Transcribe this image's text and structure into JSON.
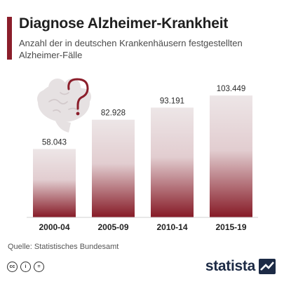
{
  "header": {
    "title": "Diagnose Alzheimer-Krankheit",
    "subtitle": "Anzahl der in deutschen Krankenhäusern festgestellten Alzheimer-Fälle"
  },
  "chart_data": {
    "type": "bar",
    "title": "Diagnose Alzheimer-Krankheit",
    "subtitle": "Anzahl der in deutschen Krankenhäusern festgestellten Alzheimer-Fälle",
    "categories": [
      "2000-04",
      "2005-09",
      "2010-14",
      "2015-19"
    ],
    "values": [
      58043,
      82928,
      93191,
      103449
    ],
    "value_labels": [
      "58.043",
      "82.928",
      "93.191",
      "103.449"
    ],
    "ylim": [
      0,
      125000
    ],
    "grid": false,
    "legend": "none",
    "bar_gradient": [
      "#ede6e7",
      "#861a26"
    ],
    "decoration": "brain-with-question-mark-icon"
  },
  "footer": {
    "source": "Quelle: Statistisches Bundesamt",
    "brand": "statista",
    "license_icons": [
      "cc-icon",
      "by-icon",
      "nd-icon"
    ],
    "license_glyphs": [
      "cc",
      "i",
      "="
    ]
  },
  "colors": {
    "accent": "#8b1e2b",
    "brand": "#1c2a45",
    "brain": "#e6e1e2",
    "question_mark": "#8b1e2b"
  }
}
